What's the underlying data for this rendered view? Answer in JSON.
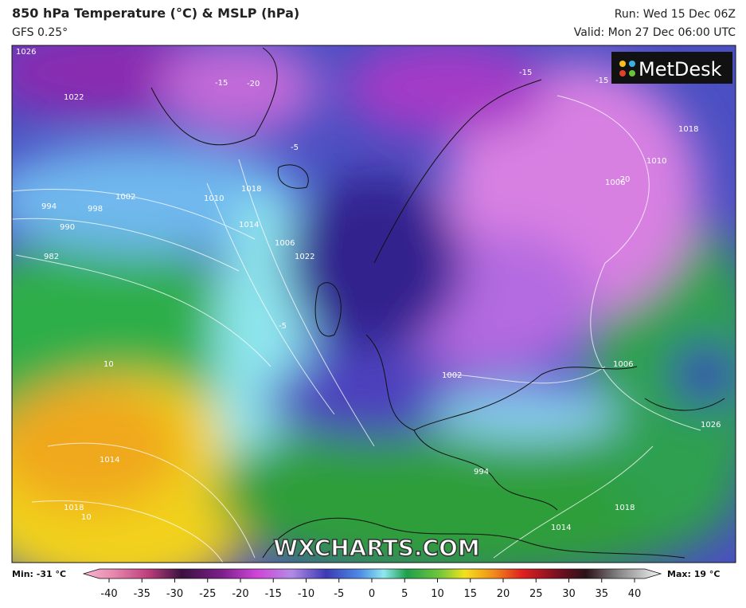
{
  "header": {
    "title": "850 hPa Temperature (°C) & MSLP (hPa)",
    "model": "GFS 0.25°",
    "run": "Run: Wed 15 Dec 06Z",
    "valid": "Valid: Mon 27 Dec 06:00 UTC"
  },
  "logo": "MetDesk",
  "watermark": "WXCHARTS.COM",
  "map_labels": [
    "1026",
    "1022",
    "1002",
    "994",
    "998",
    "990",
    "982",
    "1010",
    "1018",
    "1014",
    "1022",
    "-5",
    "-15",
    "-20",
    "-15",
    "-15",
    "1010",
    "1006",
    "-20",
    "1018",
    "1002",
    "1006",
    "10",
    "1014",
    "1018",
    "10",
    "994",
    "1026",
    "1014",
    "1018",
    "-5",
    "1006"
  ],
  "legend": {
    "min": "Min: -31 °C",
    "max": "Max: 19 °C",
    "ticks": [
      -40,
      -35,
      -30,
      -25,
      -20,
      -15,
      -10,
      -5,
      0,
      5,
      10,
      15,
      20,
      25,
      30,
      35,
      40
    ]
  }
}
